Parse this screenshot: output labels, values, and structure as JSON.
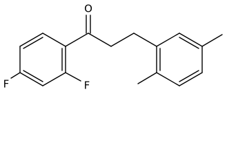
{
  "atoms": [
    "O",
    "F",
    "F"
  ]
}
